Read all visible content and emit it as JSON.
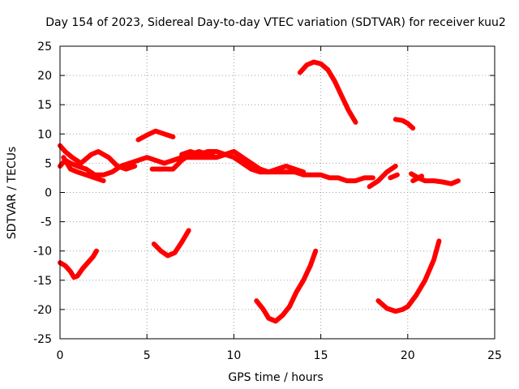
{
  "chart_data": {
    "type": "line",
    "title": "Day 154 of 2023, Sidereal Day-to-day VTEC variation (SDTVAR) for receiver kuu2",
    "xlabel": "GPS time / hours",
    "ylabel": "SDTVAR / TECUs",
    "xlim": [
      0,
      25
    ],
    "ylim": [
      -25,
      25
    ],
    "xticks": [
      0,
      5,
      10,
      15,
      20,
      25
    ],
    "yticks": [
      -25,
      -20,
      -15,
      -10,
      -5,
      0,
      5,
      10,
      15,
      20,
      25
    ],
    "grid": true,
    "series_color": "#ff0000",
    "series": [
      {
        "name": "main-band-a",
        "x": [
          0,
          0.3,
          0.6,
          1.0,
          1.5,
          2.0,
          2.5,
          3.0,
          3.5,
          4.0,
          4.5,
          5.0,
          5.5,
          6.0,
          6.5,
          7.0,
          7.5,
          8.0,
          8.5,
          9.0,
          9.5,
          10.0,
          10.5,
          11.0,
          11.5,
          12.0,
          12.5,
          13.0,
          13.5,
          14.0,
          14.5,
          15.0,
          15.5,
          16.0,
          16.5,
          17.0,
          17.5,
          18.0
        ],
        "y": [
          4.5,
          5.5,
          5.0,
          4.5,
          4.0,
          3.0,
          3.0,
          3.5,
          4.5,
          5.0,
          5.5,
          6.0,
          5.5,
          5.0,
          5.5,
          6.0,
          6.0,
          6.0,
          6.0,
          6.0,
          6.5,
          6.0,
          5.0,
          4.0,
          3.5,
          3.5,
          3.5,
          3.5,
          3.5,
          3.0,
          3.0,
          3.0,
          2.5,
          2.5,
          2.0,
          2.0,
          2.5,
          2.5
        ]
      },
      {
        "name": "main-band-b",
        "x": [
          0,
          0.3,
          0.7,
          1.2,
          1.8,
          2.2,
          2.8,
          3.3,
          3.8,
          4.3
        ],
        "y": [
          8.0,
          7.0,
          6.0,
          5.0,
          6.5,
          7.0,
          6.0,
          4.5,
          4.0,
          4.5
        ]
      },
      {
        "name": "main-band-c",
        "x": [
          0.2,
          0.6,
          1.0,
          1.5,
          2.0,
          2.5
        ],
        "y": [
          6.0,
          4.0,
          3.5,
          3.0,
          2.5,
          2.0
        ]
      },
      {
        "name": "mid-band",
        "x": [
          5.3,
          6.0,
          6.5,
          7.0,
          7.5,
          8.0,
          8.5,
          9.0,
          9.5,
          10.0,
          10.5,
          11.0,
          11.5
        ],
        "y": [
          4.0,
          4.0,
          4.0,
          5.5,
          6.5,
          7.0,
          6.5,
          6.0,
          6.5,
          7.0,
          6.0,
          4.0,
          3.5
        ]
      },
      {
        "name": "upper-band",
        "x": [
          7.0,
          7.5,
          8.0,
          8.5,
          9.0,
          9.5,
          10.0,
          10.5,
          11.0,
          11.5,
          12.0,
          12.5,
          13.0,
          13.5,
          14.0
        ],
        "y": [
          6.5,
          7.0,
          6.5,
          7.0,
          7.0,
          6.5,
          7.0,
          6.0,
          5.0,
          4.0,
          3.5,
          4.0,
          4.5,
          4.0,
          3.5
        ]
      },
      {
        "name": "hump-5",
        "x": [
          4.5,
          5.0,
          5.5,
          6.0,
          6.5
        ],
        "y": [
          9.0,
          9.8,
          10.5,
          10.0,
          9.5
        ]
      },
      {
        "name": "late-rise",
        "x": [
          17.8,
          18.3,
          18.8,
          19.3
        ],
        "y": [
          1.0,
          2.0,
          3.5,
          4.5
        ]
      },
      {
        "name": "late-rise-b",
        "x": [
          19.0,
          19.4
        ],
        "y": [
          2.5,
          3.0
        ]
      },
      {
        "name": "tail",
        "x": [
          20.2,
          20.6,
          21.0,
          21.5,
          22.0,
          22.5,
          22.9
        ],
        "y": [
          3.2,
          2.5,
          2.0,
          2.0,
          1.8,
          1.5,
          2.0
        ]
      },
      {
        "name": "tail-b",
        "x": [
          20.3,
          20.8
        ],
        "y": [
          2.0,
          2.8
        ]
      },
      {
        "name": "arc-15",
        "x": [
          13.8,
          14.2,
          14.6,
          15.0,
          15.4,
          15.8,
          16.2,
          16.6,
          17.0
        ],
        "y": [
          20.5,
          21.8,
          22.3,
          22.0,
          21.0,
          19.0,
          16.5,
          14.0,
          12.0
        ]
      },
      {
        "name": "seg-19",
        "x": [
          19.3,
          19.7,
          20.0,
          20.3
        ],
        "y": [
          12.5,
          12.3,
          11.8,
          11.0
        ]
      },
      {
        "name": "low-0",
        "x": [
          0,
          0.3,
          0.6,
          0.8,
          1.0,
          1.3,
          1.6,
          1.9,
          2.1
        ],
        "y": [
          -12.0,
          -12.5,
          -13.5,
          -14.5,
          -14.3,
          -13.0,
          -12.0,
          -11.0,
          -10.0
        ]
      },
      {
        "name": "low-5",
        "x": [
          5.4,
          5.8,
          6.2,
          6.6,
          7.0,
          7.4
        ],
        "y": [
          -8.8,
          -10.0,
          -10.8,
          -10.3,
          -8.5,
          -6.5
        ]
      },
      {
        "name": "low-12",
        "x": [
          11.3,
          11.7,
          12.0,
          12.4,
          12.8,
          13.2,
          13.6,
          14.0,
          14.4,
          14.7
        ],
        "y": [
          -18.5,
          -20.0,
          -21.5,
          -22.0,
          -21.0,
          -19.5,
          -17.0,
          -15.0,
          -12.5,
          -10.0
        ]
      },
      {
        "name": "low-19",
        "x": [
          18.3,
          18.8,
          19.3,
          19.7,
          20.0,
          20.5,
          21.0,
          21.5,
          21.8
        ],
        "y": [
          -18.5,
          -19.8,
          -20.3,
          -20.0,
          -19.5,
          -17.5,
          -15.0,
          -11.5,
          -8.3
        ]
      }
    ]
  }
}
